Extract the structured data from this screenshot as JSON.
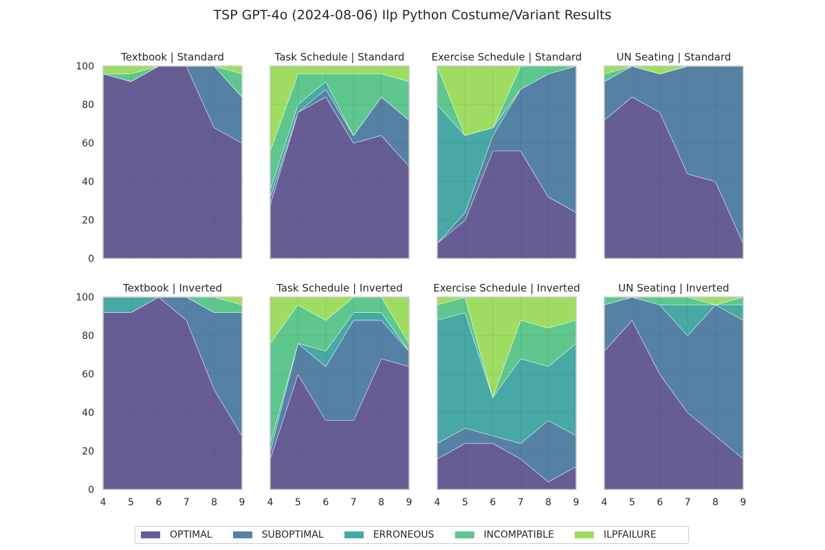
{
  "title": "TSP GPT-4o (2024-08-06) Ilp Python Costume/Variant Results",
  "categories_legend": [
    "OPTIMAL",
    "SUBOPTIMAL",
    "ERRONEOUS",
    "INCOMPATIBLE",
    "ILPFAILURE"
  ],
  "colors": [
    "#45397e",
    "#2f6790",
    "#1f9591",
    "#39bb74",
    "#8ad53f"
  ],
  "chart_data": {
    "type": "area",
    "stacked": true,
    "x": [
      4,
      5,
      6,
      7,
      8,
      9
    ],
    "xticks": [
      "4",
      "5",
      "6",
      "7",
      "8",
      "9"
    ],
    "ylim": [
      0,
      100
    ],
    "yticks": [
      "0",
      "20",
      "40",
      "60",
      "80",
      "100"
    ],
    "grid": true,
    "legend_position": "bottom-center",
    "panels": [
      {
        "title": "Textbook | Standard",
        "series": [
          {
            "name": "OPTIMAL",
            "values": [
              96,
              92,
              100,
              100,
              68,
              60
            ]
          },
          {
            "name": "SUBOPTIMAL",
            "values": [
              0,
              0,
              0,
              0,
              32,
              24
            ]
          },
          {
            "name": "ERRONEOUS",
            "values": [
              0,
              0,
              0,
              0,
              0,
              0
            ]
          },
          {
            "name": "INCOMPATIBLE",
            "values": [
              0,
              4,
              0,
              0,
              0,
              12
            ]
          },
          {
            "name": "ILPFAILURE",
            "values": [
              4,
              4,
              0,
              0,
              0,
              4
            ]
          }
        ]
      },
      {
        "title": "Task Schedule | Standard",
        "series": [
          {
            "name": "OPTIMAL",
            "values": [
              28,
              76,
              84,
              60,
              64,
              48
            ]
          },
          {
            "name": "SUBOPTIMAL",
            "values": [
              4,
              0,
              4,
              4,
              20,
              24
            ]
          },
          {
            "name": "ERRONEOUS",
            "values": [
              4,
              4,
              4,
              0,
              0,
              0
            ]
          },
          {
            "name": "INCOMPATIBLE",
            "values": [
              20,
              16,
              4,
              32,
              12,
              20
            ]
          },
          {
            "name": "ILPFAILURE",
            "values": [
              44,
              4,
              4,
              4,
              4,
              8
            ]
          }
        ]
      },
      {
        "title": "Exercise Schedule | Standard",
        "series": [
          {
            "name": "OPTIMAL",
            "values": [
              8,
              20,
              56,
              56,
              32,
              24
            ]
          },
          {
            "name": "SUBOPTIMAL",
            "values": [
              0,
              4,
              8,
              32,
              64,
              76
            ]
          },
          {
            "name": "ERRONEOUS",
            "values": [
              72,
              40,
              4,
              0,
              0,
              0
            ]
          },
          {
            "name": "INCOMPATIBLE",
            "values": [
              20,
              0,
              0,
              12,
              4,
              0
            ]
          },
          {
            "name": "ILPFAILURE",
            "values": [
              0,
              36,
              32,
              0,
              0,
              0
            ]
          }
        ]
      },
      {
        "title": "UN Seating | Standard",
        "series": [
          {
            "name": "OPTIMAL",
            "values": [
              72,
              84,
              76,
              44,
              40,
              8
            ]
          },
          {
            "name": "SUBOPTIMAL",
            "values": [
              20,
              16,
              20,
              56,
              60,
              92
            ]
          },
          {
            "name": "ERRONEOUS",
            "values": [
              0,
              0,
              0,
              0,
              0,
              0
            ]
          },
          {
            "name": "INCOMPATIBLE",
            "values": [
              4,
              0,
              0,
              0,
              0,
              0
            ]
          },
          {
            "name": "ILPFAILURE",
            "values": [
              4,
              0,
              4,
              0,
              0,
              0
            ]
          }
        ]
      },
      {
        "title": "Textbook | Inverted",
        "series": [
          {
            "name": "OPTIMAL",
            "values": [
              92,
              92,
              100,
              88,
              52,
              28
            ]
          },
          {
            "name": "SUBOPTIMAL",
            "values": [
              0,
              0,
              0,
              12,
              40,
              64
            ]
          },
          {
            "name": "ERRONEOUS",
            "values": [
              8,
              8,
              0,
              0,
              0,
              0
            ]
          },
          {
            "name": "INCOMPATIBLE",
            "values": [
              0,
              0,
              0,
              0,
              8,
              4
            ]
          },
          {
            "name": "ILPFAILURE",
            "values": [
              0,
              0,
              0,
              0,
              0,
              4
            ]
          }
        ]
      },
      {
        "title": "Task Schedule | Inverted",
        "series": [
          {
            "name": "OPTIMAL",
            "values": [
              16,
              60,
              36,
              36,
              68,
              64
            ]
          },
          {
            "name": "SUBOPTIMAL",
            "values": [
              4,
              16,
              28,
              52,
              20,
              8
            ]
          },
          {
            "name": "ERRONEOUS",
            "values": [
              4,
              0,
              8,
              4,
              4,
              0
            ]
          },
          {
            "name": "INCOMPATIBLE",
            "values": [
              52,
              20,
              16,
              8,
              8,
              4
            ]
          },
          {
            "name": "ILPFAILURE",
            "values": [
              24,
              4,
              12,
              0,
              0,
              24
            ]
          }
        ]
      },
      {
        "title": "Exercise Schedule | Inverted",
        "series": [
          {
            "name": "OPTIMAL",
            "values": [
              16,
              24,
              24,
              16,
              4,
              12
            ]
          },
          {
            "name": "SUBOPTIMAL",
            "values": [
              8,
              8,
              4,
              8,
              32,
              16
            ]
          },
          {
            "name": "ERRONEOUS",
            "values": [
              64,
              60,
              20,
              44,
              28,
              48
            ]
          },
          {
            "name": "INCOMPATIBLE",
            "values": [
              8,
              8,
              0,
              20,
              20,
              12
            ]
          },
          {
            "name": "ILPFAILURE",
            "values": [
              4,
              0,
              52,
              12,
              16,
              12
            ]
          }
        ]
      },
      {
        "title": "UN Seating | Inverted",
        "series": [
          {
            "name": "OPTIMAL",
            "values": [
              72,
              88,
              60,
              40,
              28,
              16
            ]
          },
          {
            "name": "SUBOPTIMAL",
            "values": [
              24,
              12,
              36,
              40,
              68,
              72
            ]
          },
          {
            "name": "ERRONEOUS",
            "values": [
              0,
              0,
              0,
              16,
              0,
              8
            ]
          },
          {
            "name": "INCOMPATIBLE",
            "values": [
              4,
              0,
              4,
              4,
              0,
              4
            ]
          },
          {
            "name": "ILPFAILURE",
            "values": [
              0,
              0,
              0,
              0,
              4,
              0
            ]
          }
        ]
      }
    ]
  }
}
